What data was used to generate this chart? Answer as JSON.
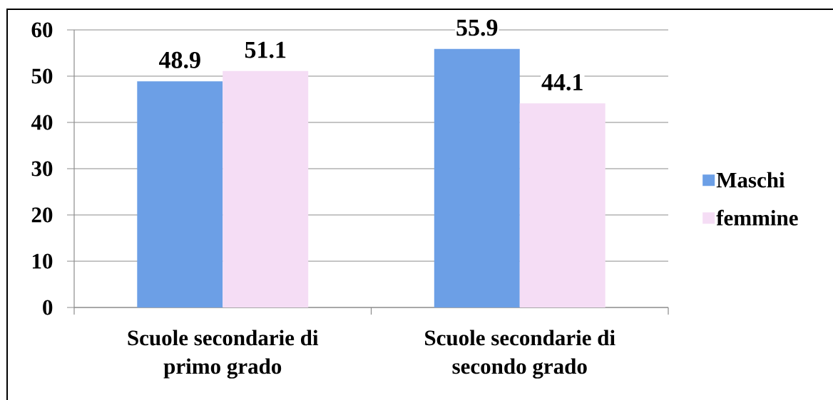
{
  "chart_data": {
    "type": "bar",
    "categories": [
      "Scuole secondarie di primo grado",
      "Scuole secondarie di secondo grado"
    ],
    "series": [
      {
        "name": "Maschi",
        "color": "#6c9fe6",
        "values": [
          48.9,
          55.9
        ]
      },
      {
        "name": "femmine",
        "color": "#f5ddf5",
        "values": [
          51.1,
          44.1
        ]
      }
    ],
    "ylim": [
      0,
      60
    ],
    "yticks": [
      0,
      10,
      20,
      30,
      40,
      50,
      60
    ],
    "grid": "y",
    "legend": "right",
    "data_labels": true
  }
}
